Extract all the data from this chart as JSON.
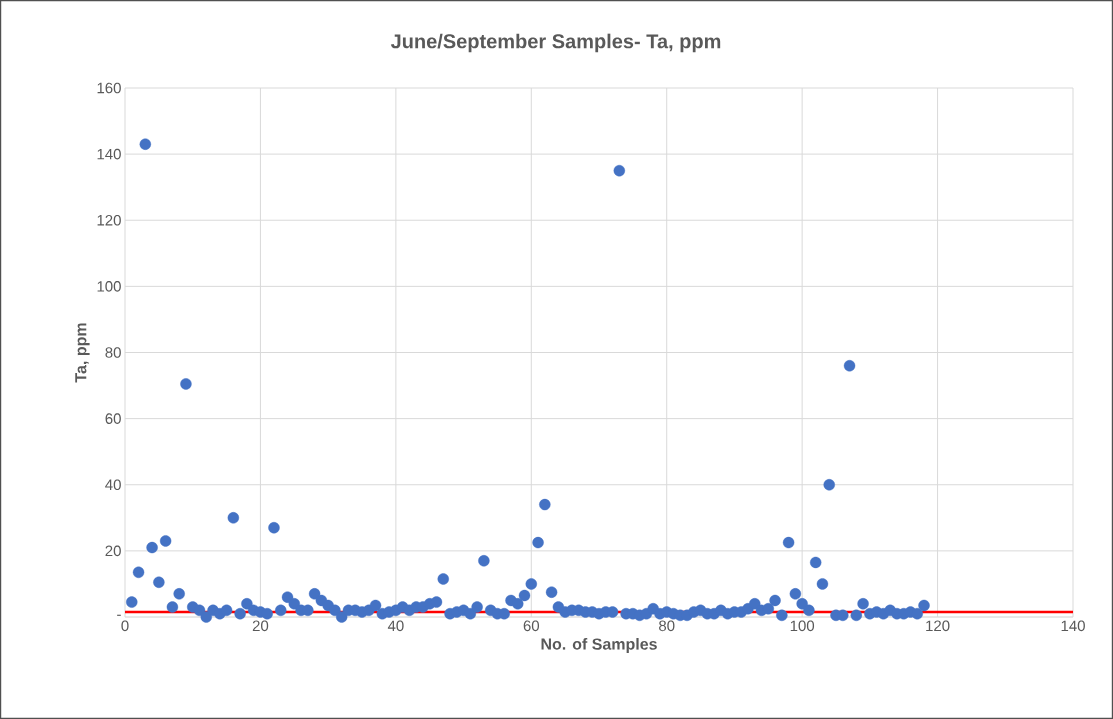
{
  "chart_data": {
    "type": "scatter",
    "title": "June/September Samples- Ta, ppm",
    "xlabel": "No. of Samples",
    "ylabel": "Ta, ppm",
    "x": [
      1,
      2,
      3,
      4,
      5,
      6,
      7,
      8,
      9,
      10,
      11,
      12,
      13,
      14,
      15,
      16,
      17,
      18,
      19,
      20,
      21,
      22,
      23,
      24,
      25,
      26,
      27,
      28,
      29,
      30,
      31,
      32,
      33,
      34,
      35,
      36,
      37,
      38,
      39,
      40,
      41,
      42,
      43,
      44,
      45,
      46,
      47,
      48,
      49,
      50,
      51,
      52,
      53,
      54,
      55,
      56,
      57,
      58,
      59,
      60,
      61,
      62,
      63,
      64,
      65,
      66,
      67,
      68,
      69,
      70,
      71,
      72,
      73,
      74,
      75,
      76,
      77,
      78,
      79,
      80,
      81,
      82,
      83,
      84,
      85,
      86,
      87,
      88,
      89,
      90,
      91,
      92,
      93,
      94,
      95,
      96,
      97,
      98,
      99,
      100,
      101,
      102,
      103,
      104,
      105,
      106,
      107,
      108,
      109,
      110,
      111,
      112,
      113,
      114,
      115,
      116,
      117,
      118
    ],
    "values": [
      4.5,
      13.5,
      143,
      21,
      10.5,
      23,
      3,
      7,
      70.5,
      3,
      2,
      0,
      2,
      1,
      2,
      30,
      1,
      4,
      2,
      1.5,
      1,
      27,
      2,
      6,
      4,
      2,
      2,
      7,
      5,
      3.5,
      2,
      0,
      2,
      2,
      1.5,
      2,
      3.5,
      1,
      1.5,
      2,
      3,
      2,
      3,
      3,
      4,
      4.5,
      11.5,
      1,
      1.5,
      2,
      1,
      3,
      17,
      2,
      1,
      1,
      5,
      4,
      6.5,
      10,
      22.5,
      34,
      7.5,
      3,
      1.5,
      2,
      2,
      1.5,
      1.5,
      1,
      1.5,
      1.5,
      135,
      1,
      1,
      0.5,
      1,
      2.5,
      1,
      1.5,
      1,
      0.5,
      0.5,
      1.5,
      2,
      1,
      1,
      2,
      1,
      1.5,
      1.5,
      2.5,
      4,
      2,
      2.5,
      5,
      0.5,
      22.5,
      7,
      4,
      2,
      16.5,
      10,
      40,
      0.5,
      0.5,
      76,
      0.5,
      4,
      1,
      1.5,
      1,
      2,
      1,
      1,
      1.5,
      1,
      3.5
    ],
    "color": "#4472c4",
    "marker": "circle",
    "xlim": [
      0,
      140
    ],
    "xticks": [
      0,
      20,
      40,
      60,
      80,
      100,
      120,
      140
    ],
    "ylim": [
      0,
      160
    ],
    "yticks": [
      {
        "value": 0,
        "label": "-"
      },
      20,
      40,
      60,
      80,
      100,
      120,
      140,
      160
    ],
    "grid": true,
    "ref_lines": [
      {
        "axis": "y",
        "value": 1.5,
        "color": "#ff0000",
        "line_style": "solid"
      }
    ]
  }
}
